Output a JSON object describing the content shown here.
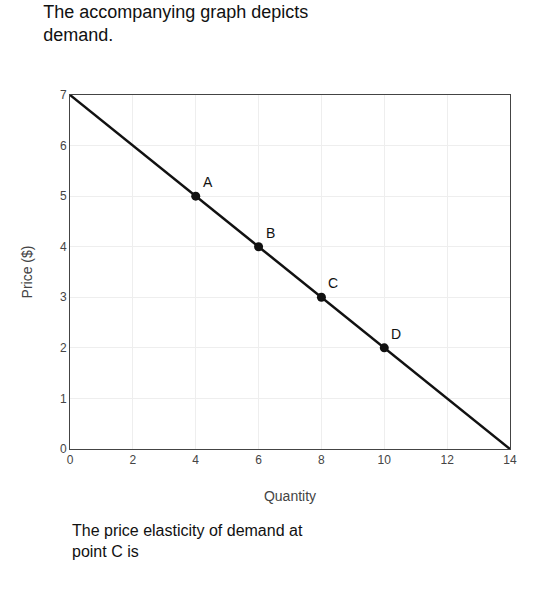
{
  "chart_data": {
    "type": "line",
    "title": "The accompanying graph depicts\ndemand.",
    "subtitle": "The price elasticity of demand at\npoint C is",
    "xlabel": "Quantity",
    "ylabel": "Price ($)",
    "xlim": [
      0,
      14
    ],
    "ylim": [
      0,
      7
    ],
    "xticks": [
      0,
      2,
      4,
      6,
      8,
      10,
      12,
      14
    ],
    "yticks": [
      0,
      1,
      2,
      3,
      4,
      5,
      6,
      7
    ],
    "grid": true,
    "series": [
      {
        "type": "line",
        "x": [
          0,
          14
        ],
        "values": [
          7,
          0
        ],
        "color": "#111111"
      },
      {
        "type": "scatter",
        "x": [
          4,
          6,
          8,
          10
        ],
        "values": [
          5,
          4,
          3,
          2
        ],
        "color": "#111111",
        "marker": "circle"
      }
    ],
    "annotations": [
      {
        "x": 4,
        "y": 5,
        "text": "A"
      },
      {
        "x": 6,
        "y": 4,
        "text": "B"
      },
      {
        "x": 8,
        "y": 3,
        "text": "C"
      },
      {
        "x": 10,
        "y": 2,
        "text": "D"
      }
    ]
  }
}
